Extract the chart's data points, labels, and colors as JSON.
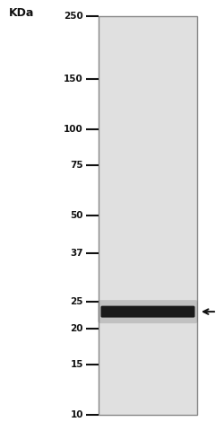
{
  "background_color": "#ffffff",
  "gel_bg_color": "#e0e0e0",
  "kda_label": "KDa",
  "ladder_marks": [
    {
      "label": "250",
      "kda": 250
    },
    {
      "label": "150",
      "kda": 150
    },
    {
      "label": "100",
      "kda": 100
    },
    {
      "label": "75",
      "kda": 75
    },
    {
      "label": "50",
      "kda": 50
    },
    {
      "label": "37",
      "kda": 37
    },
    {
      "label": "25",
      "kda": 25
    },
    {
      "label": "20",
      "kda": 20
    },
    {
      "label": "15",
      "kda": 15
    },
    {
      "label": "10",
      "kda": 10
    }
  ],
  "band_kda": 23,
  "band_color": "#111111",
  "arrow_color": "#111111",
  "log_min": 10,
  "log_max": 250,
  "figsize": [
    2.5,
    4.8
  ],
  "dpi": 100
}
